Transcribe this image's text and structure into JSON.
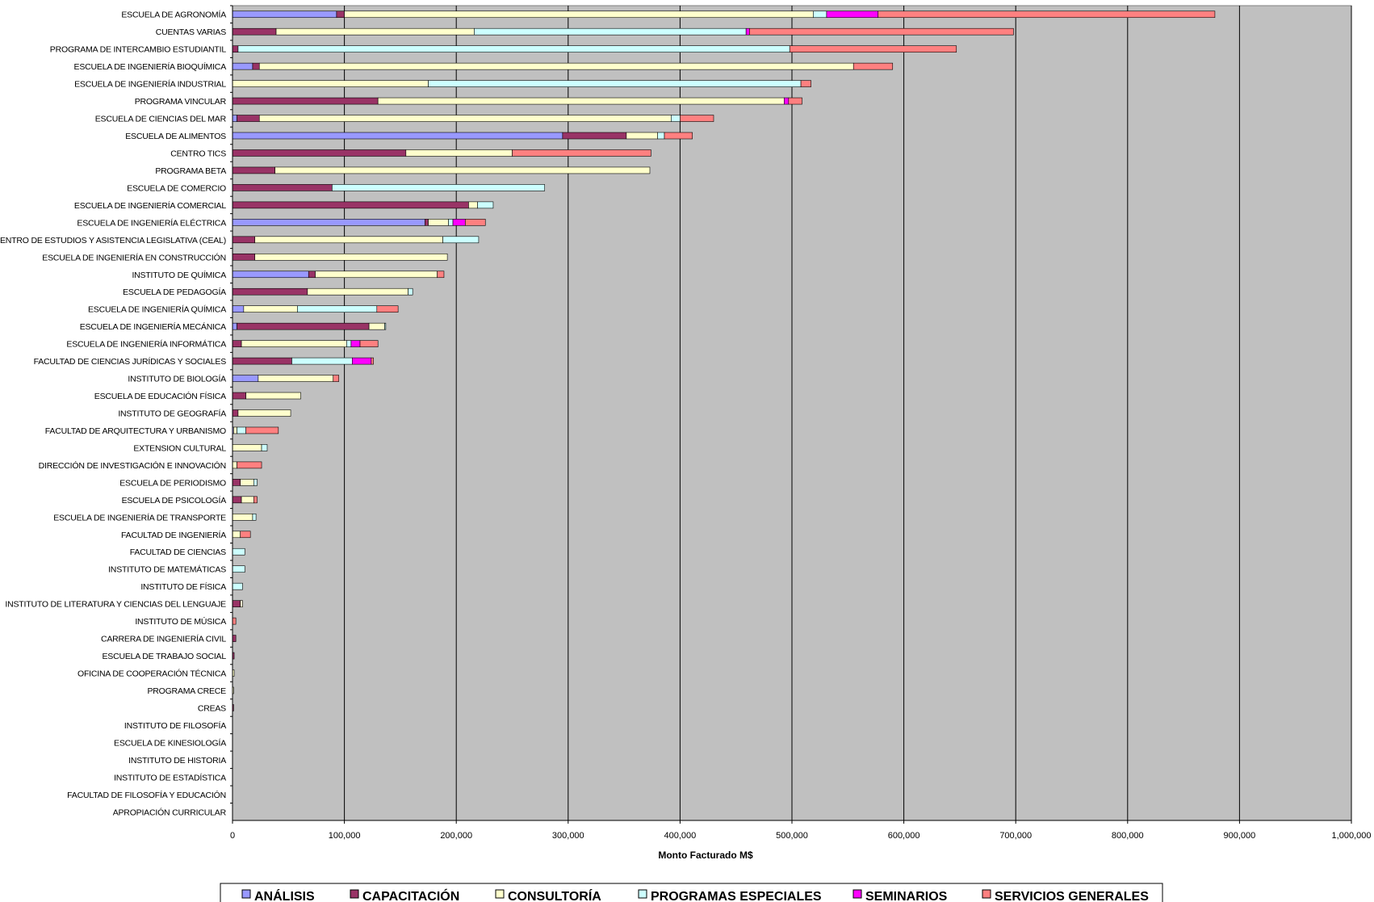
{
  "chart_data": {
    "type": "bar",
    "orientation": "horizontal",
    "stacked": true,
    "title": "",
    "xlabel": "Monto Facturado M$",
    "ylabel": "",
    "xlim": [
      0,
      1000000
    ],
    "x_ticks": [
      0,
      100000,
      200000,
      300000,
      400000,
      500000,
      600000,
      700000,
      800000,
      900000,
      1000000
    ],
    "x_tick_labels": [
      "0",
      "100,000",
      "200,000",
      "300,000",
      "400,000",
      "500,000",
      "600,000",
      "700,000",
      "800,000",
      "900,000",
      "1,000,000"
    ],
    "grid": true,
    "legend_position": "bottom",
    "plot_background": "#C0C0C0",
    "categories": [
      "ESCUELA DE AGRONOMÍA",
      "CUENTAS VARIAS",
      "PROGRAMA DE INTERCAMBIO ESTUDIANTIL",
      "ESCUELA DE INGENIERÍA BIOQUÍMICA",
      "ESCUELA DE INGENIERÍA INDUSTRIAL",
      "PROGRAMA VINCULAR",
      "ESCUELA DE CIENCIAS DEL MAR",
      "ESCUELA DE ALIMENTOS",
      "CENTRO TICS",
      "PROGRAMA BETA",
      "ESCUELA DE COMERCIO",
      "ESCUELA DE INGENIERÍA COMERCIAL",
      "ESCUELA DE INGENIERÍA ELÉCTRICA",
      "CENTRO DE ESTUDIOS Y ASISTENCIA LEGISLATIVA (CEAL)",
      "ESCUELA DE INGENIERÍA EN CONSTRUCCIÓN",
      "INSTITUTO DE QUÍMICA",
      "ESCUELA DE PEDAGOGÍA",
      "ESCUELA DE INGENIERÍA QUÍMICA",
      "ESCUELA DE INGENIERÍA MECÁNICA",
      "ESCUELA DE INGENIERÍA INFORMÁTICA",
      "FACULTAD DE CIENCIAS JURÍDICAS Y SOCIALES",
      "INSTITUTO DE BIOLOGÍA",
      "ESCUELA DE EDUCACIÓN FÍSICA",
      "INSTITUTO DE GEOGRAFÍA",
      "FACULTAD DE ARQUITECTURA Y URBANISMO",
      "EXTENSION CULTURAL",
      "DIRECCIÓN DE INVESTIGACIÓN E INNOVACIÓN",
      "ESCUELA DE PERIODISMO",
      "ESCUELA DE PSICOLOGÍA",
      "ESCUELA DE INGENIERÍA DE TRANSPORTE",
      "FACULTAD DE INGENIERÍA",
      "FACULTAD DE CIENCIAS",
      "INSTITUTO DE MATEMÁTICAS",
      "INSTITUTO DE FÍSICA",
      "INSTITUTO DE LITERATURA Y CIENCIAS DEL LENGUAJE",
      "INSTITUTO DE MÚSICA",
      "CARRERA DE INGENIERÍA CIVIL",
      "ESCUELA DE TRABAJO SOCIAL",
      "OFICINA DE COOPERACIÓN TÉCNICA",
      "PROGRAMA CRECE",
      "CREAS",
      "INSTITUTO DE FILOSOFÍA",
      "ESCUELA DE KINESIOLOGÍA",
      "INSTITUTO DE HISTORIA",
      "INSTITUTO DE ESTADÍSTICA",
      "FACULTAD DE FILOSOFÍA Y EDUCACIÓN",
      "APROPIACIÓN CURRICULAR"
    ],
    "series": [
      {
        "name": "ANÁLISIS",
        "color": "#9999FF",
        "values": [
          93000,
          0,
          0,
          18000,
          0,
          0,
          4000,
          295000,
          0,
          0,
          0,
          0,
          172000,
          0,
          0,
          68000,
          0,
          10000,
          4000,
          0,
          0,
          23000,
          0,
          0,
          1000,
          0,
          0,
          0,
          0,
          0,
          0,
          0,
          0,
          0,
          0,
          0,
          0,
          0,
          0,
          0,
          0,
          0,
          0,
          0,
          0,
          0,
          0
        ]
      },
      {
        "name": "CAPACITACIÓN",
        "color": "#993366",
        "values": [
          7000,
          39000,
          5000,
          6000,
          0,
          130000,
          20000,
          57000,
          155000,
          38000,
          89000,
          211000,
          3000,
          20000,
          20000,
          6000,
          67000,
          0,
          118000,
          8000,
          53000,
          0,
          12000,
          5000,
          0,
          0,
          0,
          7000,
          8000,
          0,
          0,
          0,
          0,
          0,
          7000,
          0,
          3000,
          1500,
          0,
          0,
          1000,
          0,
          0,
          0,
          0,
          0,
          0
        ]
      },
      {
        "name": "CONSULTORÍA",
        "color": "#FFFFCC",
        "values": [
          419000,
          177000,
          0,
          531000,
          175000,
          363000,
          368000,
          28000,
          95000,
          335000,
          0,
          8000,
          18000,
          168000,
          172000,
          109000,
          90000,
          48000,
          14000,
          94000,
          0,
          67000,
          49000,
          47000,
          3000,
          26000,
          4000,
          12000,
          11000,
          18000,
          7000,
          0,
          0,
          0,
          2000,
          0,
          0,
          0,
          1500,
          1000,
          0,
          0,
          0,
          0,
          0,
          0,
          0
        ]
      },
      {
        "name": "PROGRAMAS ESPECIALES",
        "color": "#CCFFFF",
        "values": [
          12000,
          243000,
          493000,
          0,
          333000,
          0,
          8000,
          6000,
          0,
          0,
          190000,
          14000,
          4000,
          32000,
          0,
          0,
          4000,
          71000,
          1000,
          4000,
          54000,
          0,
          0,
          0,
          8000,
          5000,
          0,
          3000,
          0,
          3000,
          0,
          11000,
          11000,
          9000,
          0,
          0,
          0,
          0,
          0,
          0,
          0,
          0,
          0,
          0,
          0,
          0,
          0
        ]
      },
      {
        "name": "SEMINARIOS",
        "color": "#FF00FF",
        "values": [
          46000,
          3000,
          0,
          0,
          0,
          4000,
          0,
          0,
          0,
          0,
          0,
          0,
          11000,
          0,
          0,
          0,
          0,
          0,
          0,
          8000,
          17000,
          0,
          0,
          0,
          0,
          0,
          0,
          0,
          0,
          0,
          0,
          0,
          0,
          0,
          0,
          0,
          0,
          0,
          0,
          0,
          0,
          0,
          0,
          0,
          0,
          0,
          0
        ]
      },
      {
        "name": "SERVICIOS GENERALES",
        "color": "#FF8080",
        "values": [
          301000,
          236000,
          149000,
          35000,
          9000,
          12000,
          30000,
          25000,
          124000,
          0,
          0,
          0,
          18000,
          0,
          0,
          6000,
          0,
          19000,
          0,
          16000,
          2000,
          5000,
          0,
          0,
          29000,
          0,
          22000,
          0,
          3000,
          0,
          9000,
          0,
          0,
          0,
          0,
          3000,
          0,
          0,
          0,
          0,
          0,
          0,
          0,
          0,
          0,
          0,
          0
        ]
      }
    ]
  }
}
